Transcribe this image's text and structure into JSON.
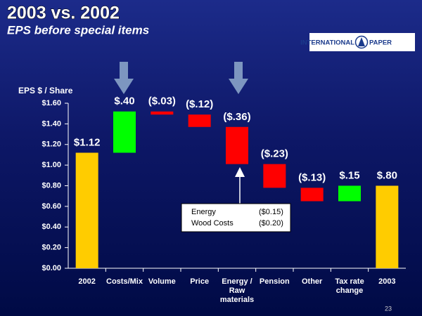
{
  "header": {
    "title": "2003 vs. 2002",
    "subtitle": "EPS before special items",
    "logo_left": "INTERNATIONAL",
    "logo_right": "PAPER"
  },
  "chart_data": {
    "type": "waterfall",
    "y_label": "EPS $ / Share",
    "categories": [
      "2002",
      "Costs/Mix",
      "Volume",
      "Price",
      "Energy / Raw materials",
      "Pension",
      "Other",
      "Tax rate change",
      "2003"
    ],
    "values": [
      1.12,
      0.4,
      -0.03,
      -0.12,
      -0.36,
      -0.23,
      -0.13,
      0.15,
      0.8
    ],
    "value_labels": [
      "$1.12",
      "$.40",
      "($.03)",
      "($.12)",
      "($.36)",
      "($.23)",
      "($.13)",
      "$.15",
      "$.80"
    ],
    "measure": [
      "absolute",
      "relative",
      "relative",
      "relative",
      "relative",
      "relative",
      "relative",
      "relative",
      "total"
    ],
    "colors": {
      "total": "#ffcc00",
      "increase": "#00ff00",
      "decrease": "#ff0000"
    },
    "ylim": [
      0,
      1.6
    ],
    "yticks": [
      {
        "value": 0,
        "label": "$0.00"
      },
      {
        "value": 0.2,
        "label": "$0.20"
      },
      {
        "value": 0.4,
        "label": "$0.40"
      },
      {
        "value": 0.6,
        "label": "$0.60"
      },
      {
        "value": 0.8,
        "label": "$0.80"
      },
      {
        "value": 1.0,
        "label": "$1.00"
      },
      {
        "value": 1.2,
        "label": "$1.20"
      },
      {
        "value": 1.4,
        "label": "$1.40"
      },
      {
        "value": 1.6,
        "label": "$1.60"
      }
    ],
    "grid": false
  },
  "annotation": {
    "rows": [
      [
        "Energy",
        "($0.15)"
      ],
      [
        "Wood Costs",
        "($0.20)"
      ]
    ]
  },
  "footer": {
    "page": "23"
  }
}
